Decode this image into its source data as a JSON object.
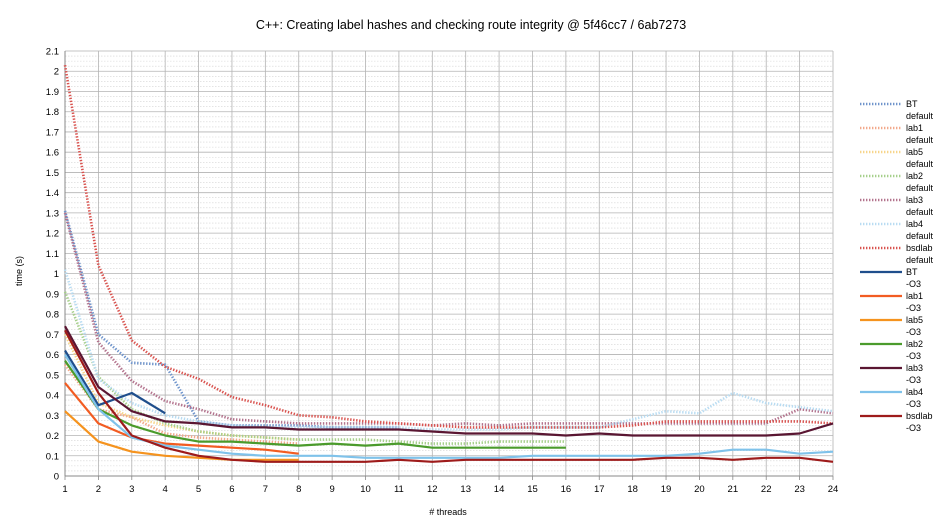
{
  "chart_data": {
    "type": "line",
    "title": "C++: Creating label hashes and checking route integrity @ 5f46cc7 / 6ab7273",
    "xlabel": "# threads",
    "ylabel": "time (s)",
    "x_ticks": [
      "1",
      "2",
      "3",
      "4",
      "5",
      "6",
      "7",
      "8",
      "9",
      "10",
      "11",
      "12",
      "13",
      "14",
      "15",
      "16",
      "17",
      "18",
      "19",
      "20",
      "21",
      "22",
      "23",
      "24"
    ],
    "y_ticks": [
      "0",
      "0.1",
      "0.2",
      "0.3",
      "0.4",
      "0.5",
      "0.6",
      "0.7",
      "0.8",
      "0.9",
      "1",
      "1.1",
      "1.2",
      "1.3",
      "1.4",
      "1.5",
      "1.6",
      "1.7",
      "1.8",
      "1.9",
      "2",
      "2.1"
    ],
    "xlim": [
      1,
      24
    ],
    "ylim": [
      0,
      2.1
    ],
    "grid": true,
    "legend_position": "right",
    "series": [
      {
        "name": "BT default",
        "line1": "BT",
        "line2": "default",
        "style": "dotted",
        "color": "#6f94cb",
        "x": [
          1,
          2,
          3,
          4,
          5,
          6,
          7,
          8,
          9,
          10,
          11
        ],
        "values": [
          1.31,
          0.7,
          0.56,
          0.55,
          0.27,
          0.25,
          0.25,
          0.25,
          0.24,
          0.24,
          0.24
        ]
      },
      {
        "name": "lab1 default",
        "line1": "lab1",
        "line2": "default",
        "style": "dotted",
        "color": "#f2a98b",
        "x": [
          1,
          2,
          3,
          4,
          5,
          6,
          7,
          8
        ],
        "values": [
          0.55,
          0.33,
          0.29,
          0.21,
          0.19,
          0.18,
          0.17,
          0.16
        ]
      },
      {
        "name": "lab5 default",
        "line1": "lab5",
        "line2": "default",
        "style": "dotted",
        "color": "#f7d58a",
        "x": [
          1,
          2,
          3,
          4,
          5,
          6,
          7,
          8
        ],
        "values": [
          0.7,
          0.36,
          0.29,
          0.25,
          0.22,
          0.2,
          0.19,
          0.18
        ]
      },
      {
        "name": "lab2 default",
        "line1": "lab2",
        "line2": "default",
        "style": "dotted",
        "color": "#a6cf8b",
        "x": [
          1,
          2,
          3,
          4,
          5,
          6,
          7,
          8,
          9,
          10,
          11,
          12,
          13,
          14,
          15,
          16
        ],
        "values": [
          0.91,
          0.49,
          0.33,
          0.26,
          0.22,
          0.2,
          0.19,
          0.18,
          0.18,
          0.18,
          0.17,
          0.16,
          0.16,
          0.17,
          0.17,
          0.17
        ]
      },
      {
        "name": "lab3 default",
        "line1": "lab3",
        "line2": "default",
        "style": "dotted",
        "color": "#b3738d",
        "x": [
          1,
          2,
          3,
          4,
          5,
          6,
          7,
          8,
          9,
          10,
          11,
          12,
          13,
          14,
          15,
          16,
          17,
          18,
          19,
          20,
          21,
          22,
          23,
          24
        ],
        "values": [
          1.3,
          0.66,
          0.47,
          0.37,
          0.33,
          0.28,
          0.27,
          0.26,
          0.26,
          0.26,
          0.26,
          0.25,
          0.26,
          0.25,
          0.26,
          0.26,
          0.26,
          0.26,
          0.26,
          0.26,
          0.26,
          0.26,
          0.33,
          0.31
        ]
      },
      {
        "name": "lab4 default",
        "line1": "lab4",
        "line2": "default",
        "style": "dotted",
        "color": "#b9dcf2",
        "x": [
          1,
          2,
          3,
          4,
          5,
          6,
          7,
          8,
          9,
          10,
          11,
          12,
          13,
          14,
          15,
          16,
          17,
          18,
          19,
          20,
          21,
          22,
          23,
          24
        ],
        "values": [
          1.02,
          0.48,
          0.36,
          0.3,
          0.27,
          0.25,
          0.24,
          0.24,
          0.24,
          0.24,
          0.24,
          0.23,
          0.23,
          0.23,
          0.24,
          0.24,
          0.24,
          0.28,
          0.32,
          0.31,
          0.41,
          0.36,
          0.34,
          0.32
        ]
      },
      {
        "name": "bsdlab default",
        "line1": "bsdlab",
        "line2": "default",
        "style": "dotted",
        "color": "#d9534f",
        "x": [
          1,
          2,
          3,
          4,
          5,
          6,
          7,
          8,
          9,
          10,
          11,
          12,
          13,
          14,
          15,
          16,
          17,
          18,
          19,
          20,
          21,
          22,
          23,
          24
        ],
        "values": [
          2.03,
          1.04,
          0.67,
          0.54,
          0.48,
          0.39,
          0.35,
          0.3,
          0.29,
          0.27,
          0.26,
          0.25,
          0.24,
          0.24,
          0.24,
          0.24,
          0.24,
          0.25,
          0.27,
          0.27,
          0.27,
          0.27,
          0.27,
          0.26
        ]
      },
      {
        "name": "BT -O3",
        "line1": "BT",
        "line2": "-O3",
        "style": "solid",
        "color": "#1f4e8c",
        "x": [
          1,
          2,
          3,
          4
        ],
        "values": [
          0.62,
          0.35,
          0.41,
          0.31
        ]
      },
      {
        "name": "lab1 -O3",
        "line1": "lab1",
        "line2": "-O3",
        "style": "solid",
        "color": "#f25c22",
        "x": [
          1,
          2,
          3,
          4,
          5,
          6,
          7,
          8
        ],
        "values": [
          0.46,
          0.26,
          0.19,
          0.16,
          0.15,
          0.14,
          0.13,
          0.11
        ]
      },
      {
        "name": "lab5 -O3",
        "line1": "lab5",
        "line2": "-O3",
        "style": "solid",
        "color": "#f5931e",
        "x": [
          1,
          2,
          3,
          4,
          5,
          6,
          7,
          8
        ],
        "values": [
          0.32,
          0.17,
          0.12,
          0.1,
          0.09,
          0.08,
          0.08,
          0.08
        ]
      },
      {
        "name": "lab2 -O3",
        "line1": "lab2",
        "line2": "-O3",
        "style": "solid",
        "color": "#4b9b2c",
        "x": [
          1,
          2,
          3,
          4,
          5,
          6,
          7,
          8,
          9,
          10,
          11,
          12,
          13,
          14,
          15,
          16
        ],
        "values": [
          0.57,
          0.33,
          0.25,
          0.2,
          0.17,
          0.17,
          0.16,
          0.15,
          0.16,
          0.15,
          0.16,
          0.14,
          0.14,
          0.14,
          0.14,
          0.14
        ]
      },
      {
        "name": "lab3 -O3",
        "line1": "lab3",
        "line2": "-O3",
        "style": "solid",
        "color": "#5a1632",
        "x": [
          1,
          2,
          3,
          4,
          5,
          6,
          7,
          8,
          9,
          10,
          11,
          12,
          13,
          14,
          15,
          16,
          17,
          18,
          19,
          20,
          21,
          22,
          23,
          24
        ],
        "values": [
          0.74,
          0.44,
          0.32,
          0.27,
          0.26,
          0.24,
          0.24,
          0.23,
          0.23,
          0.23,
          0.23,
          0.22,
          0.21,
          0.21,
          0.21,
          0.2,
          0.21,
          0.2,
          0.2,
          0.2,
          0.2,
          0.2,
          0.21,
          0.26
        ]
      },
      {
        "name": "lab4 -O3",
        "line1": "lab4",
        "line2": "-O3",
        "style": "solid",
        "color": "#7fc2ea",
        "x": [
          1,
          2,
          3,
          4,
          5,
          6,
          7,
          8,
          9,
          10,
          11,
          12,
          13,
          14,
          15,
          16,
          17,
          18,
          19,
          20,
          21,
          22,
          23,
          24
        ],
        "values": [
          0.6,
          0.33,
          0.19,
          0.15,
          0.13,
          0.11,
          0.1,
          0.1,
          0.1,
          0.09,
          0.09,
          0.09,
          0.09,
          0.09,
          0.1,
          0.1,
          0.1,
          0.1,
          0.1,
          0.11,
          0.13,
          0.13,
          0.11,
          0.12
        ]
      },
      {
        "name": "bsdlab -O3",
        "line1": "bsdlab",
        "line2": "-O3",
        "style": "solid",
        "color": "#9e1b1b",
        "x": [
          1,
          2,
          3,
          4,
          5,
          6,
          7,
          8,
          9,
          10,
          11,
          12,
          13,
          14,
          15,
          16,
          17,
          18,
          19,
          20,
          21,
          22,
          23,
          24
        ],
        "values": [
          0.72,
          0.41,
          0.2,
          0.14,
          0.1,
          0.08,
          0.07,
          0.07,
          0.07,
          0.07,
          0.08,
          0.07,
          0.08,
          0.08,
          0.08,
          0.08,
          0.08,
          0.08,
          0.09,
          0.09,
          0.08,
          0.09,
          0.09,
          0.07
        ]
      }
    ]
  }
}
